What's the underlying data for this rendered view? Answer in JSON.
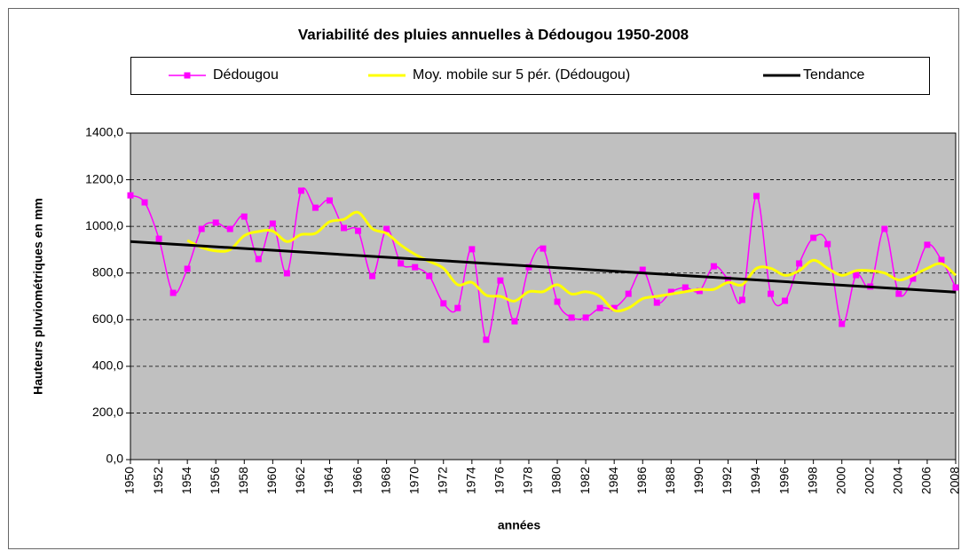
{
  "chart_data": {
    "type": "line",
    "title": "Variabilité des pluies annuelles à Dédougou 1950-2008",
    "x_label": "années",
    "y_label": "Hauteurs pluviométriques en mm",
    "x": [
      1950,
      1951,
      1952,
      1953,
      1954,
      1955,
      1956,
      1957,
      1958,
      1959,
      1960,
      1961,
      1962,
      1963,
      1964,
      1965,
      1966,
      1967,
      1968,
      1969,
      1970,
      1971,
      1972,
      1973,
      1974,
      1975,
      1976,
      1977,
      1978,
      1979,
      1980,
      1981,
      1982,
      1983,
      1984,
      1985,
      1986,
      1987,
      1988,
      1989,
      1990,
      1991,
      1992,
      1993,
      1994,
      1995,
      1996,
      1997,
      1998,
      1999,
      2000,
      2001,
      2002,
      2003,
      2004,
      2005,
      2006,
      2007,
      2008
    ],
    "series": [
      {
        "name": "Dédougou",
        "color": "#ff00ff",
        "markers": true,
        "values": [
          1133,
          1103,
          947,
          715,
          818,
          989,
          1016,
          989,
          1042,
          860,
          1012,
          799,
          1153,
          1080,
          1111,
          993,
          981,
          787,
          989,
          841,
          825,
          787,
          670,
          650,
          902,
          514,
          768,
          593,
          825,
          905,
          677,
          609,
          609,
          650,
          650,
          711,
          814,
          673,
          719,
          738,
          723,
          829,
          772,
          685,
          1130,
          711,
          681,
          841,
          951,
          924,
          582,
          791,
          742,
          989,
          711,
          776,
          921,
          856,
          738
        ]
      },
      {
        "name": "Moy. mobile sur 5 pér. (Dédougou)",
        "color": "#ffff00",
        "markers": false,
        "values": [
          null,
          null,
          null,
          null,
          940,
          910,
          895,
          900,
          960,
          978,
          980,
          935,
          965,
          970,
          1020,
          1030,
          1060,
          990,
          970,
          920,
          880,
          850,
          820,
          750,
          760,
          705,
          700,
          680,
          720,
          720,
          750,
          710,
          720,
          700,
          640,
          650,
          690,
          700,
          710,
          720,
          730,
          730,
          760,
          750,
          820,
          820,
          790,
          810,
          855,
          820,
          790,
          810,
          810,
          800,
          770,
          790,
          820,
          840,
          790
        ]
      },
      {
        "name": "Tendance",
        "color": "#000000",
        "markers": false,
        "smooth": false,
        "x": [
          1950,
          2008
        ],
        "values": [
          935,
          718
        ]
      }
    ],
    "xlim": [
      1950,
      2008
    ],
    "xticks": [
      1950,
      1952,
      1954,
      1956,
      1958,
      1960,
      1962,
      1964,
      1966,
      1968,
      1970,
      1972,
      1974,
      1976,
      1978,
      1980,
      1982,
      1984,
      1986,
      1988,
      1990,
      1992,
      1994,
      1996,
      1998,
      2000,
      2002,
      2004,
      2006,
      2008
    ],
    "ylim": [
      0,
      1400
    ],
    "yticks": [
      {
        "value": 0,
        "label": "0,0"
      },
      {
        "value": 200,
        "label": "200,0"
      },
      {
        "value": 400,
        "label": "400,0"
      },
      {
        "value": 600,
        "label": "600,0"
      },
      {
        "value": 800,
        "label": "800,0"
      },
      {
        "value": 1000,
        "label": "1000,0"
      },
      {
        "value": 1200,
        "label": "1200,0"
      },
      {
        "value": 1400,
        "label": "1400,0"
      }
    ],
    "grid": true,
    "plot_background": "#c0c0c0",
    "legend": "top"
  }
}
